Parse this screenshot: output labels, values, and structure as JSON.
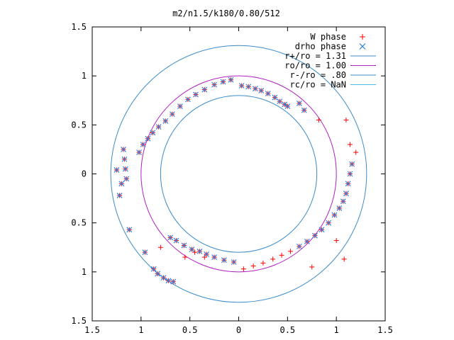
{
  "chart_data": {
    "type": "scatter",
    "title": "m2/n1.5/k180/0.80/512",
    "xlabel": "",
    "ylabel": "",
    "xlim": [
      -1.5,
      1.5
    ],
    "ylim": [
      -1.5,
      1.5
    ],
    "x_ticks": [
      -1.5,
      -1,
      -0.5,
      0,
      0.5,
      1,
      1.5
    ],
    "y_ticks": [
      -1.5,
      -1,
      -0.5,
      0,
      0.5,
      1,
      1.5
    ],
    "x_tick_labels": [
      "1.5",
      "1",
      "0.5",
      "0",
      "0.5",
      "1",
      "1.5"
    ],
    "y_tick_labels": [
      "1.5",
      "1",
      "0.5",
      "0",
      "0.5",
      "1",
      "1.5"
    ],
    "grid": false,
    "legend_position": "top-right",
    "series": [
      {
        "name": "W phase",
        "marker": "plus",
        "color": "#ff0000",
        "points": [
          [
            0.03,
            0.9
          ],
          [
            0.1,
            0.89
          ],
          [
            0.17,
            0.87
          ],
          [
            0.23,
            0.85
          ],
          [
            0.3,
            0.82
          ],
          [
            0.37,
            0.78
          ],
          [
            0.42,
            0.74
          ],
          [
            0.47,
            0.71
          ],
          [
            0.5,
            0.69
          ],
          [
            0.67,
            0.65
          ],
          [
            0.62,
            0.72
          ],
          [
            0.82,
            0.55
          ],
          [
            1.1,
            0.55
          ],
          [
            1.14,
            0.3
          ],
          [
            1.2,
            0.22
          ],
          [
            -0.08,
            0.96
          ],
          [
            -0.16,
            0.94
          ],
          [
            -0.25,
            0.91
          ],
          [
            -0.35,
            0.86
          ],
          [
            -0.44,
            0.81
          ],
          [
            -0.52,
            0.76
          ],
          [
            -0.6,
            0.69
          ],
          [
            -0.68,
            0.61
          ],
          [
            -0.75,
            0.54
          ],
          [
            -0.82,
            0.48
          ],
          [
            -0.88,
            0.42
          ],
          [
            -0.93,
            0.36
          ],
          [
            -0.98,
            0.3
          ],
          [
            -1.02,
            0.22
          ],
          [
            -1.18,
            0.25
          ],
          [
            -1.17,
            0.15
          ],
          [
            -1.16,
            0.05
          ],
          [
            -1.15,
            -0.05
          ],
          [
            -1.2,
            -0.1
          ],
          [
            -1.22,
            -0.22
          ],
          [
            -1.25,
            0.04
          ],
          [
            1.16,
            0.1
          ],
          [
            1.14,
            0.0
          ],
          [
            1.12,
            -0.1
          ],
          [
            1.1,
            -0.2
          ],
          [
            1.07,
            -0.28
          ],
          [
            1.03,
            -0.35
          ],
          [
            0.98,
            -0.42
          ],
          [
            0.92,
            -0.5
          ],
          [
            0.85,
            -0.57
          ],
          [
            0.78,
            -0.63
          ],
          [
            0.7,
            -0.69
          ],
          [
            0.62,
            -0.74
          ],
          [
            0.53,
            -0.79
          ],
          [
            0.44,
            -0.83
          ],
          [
            0.35,
            -0.87
          ],
          [
            0.25,
            -0.91
          ],
          [
            0.15,
            -0.94
          ],
          [
            0.05,
            -0.97
          ],
          [
            0.75,
            -0.95
          ],
          [
            1.08,
            -0.87
          ],
          [
            1.0,
            -0.68
          ],
          [
            -0.05,
            -0.9
          ],
          [
            -0.15,
            -0.88
          ],
          [
            -0.25,
            -0.85
          ],
          [
            -0.33,
            -0.82
          ],
          [
            -0.4,
            -0.79
          ],
          [
            -0.48,
            -0.77
          ],
          [
            -0.56,
            -0.73
          ],
          [
            -0.64,
            -0.68
          ],
          [
            -0.7,
            -0.65
          ],
          [
            -0.8,
            -0.75
          ],
          [
            -0.55,
            -0.85
          ],
          [
            -0.45,
            -0.8
          ],
          [
            -0.35,
            -0.85
          ],
          [
            -1.12,
            -0.57
          ],
          [
            -0.96,
            -0.8
          ],
          [
            -0.87,
            -0.97
          ],
          [
            -0.83,
            -1.02
          ],
          [
            -0.77,
            -1.06
          ],
          [
            -0.72,
            -1.09
          ],
          [
            -0.67,
            -1.1
          ]
        ]
      },
      {
        "name": "drho phase",
        "marker": "cross",
        "color": "#3080e0",
        "points": [
          [
            0.03,
            0.9
          ],
          [
            0.1,
            0.89
          ],
          [
            0.17,
            0.87
          ],
          [
            0.23,
            0.85
          ],
          [
            0.3,
            0.82
          ],
          [
            0.37,
            0.78
          ],
          [
            0.42,
            0.74
          ],
          [
            0.47,
            0.71
          ],
          [
            0.5,
            0.69
          ],
          [
            0.67,
            0.65
          ],
          [
            0.62,
            0.72
          ],
          [
            -0.08,
            0.96
          ],
          [
            -0.16,
            0.94
          ],
          [
            -0.25,
            0.91
          ],
          [
            -0.35,
            0.86
          ],
          [
            -0.44,
            0.81
          ],
          [
            -0.52,
            0.76
          ],
          [
            -0.6,
            0.69
          ],
          [
            -0.68,
            0.61
          ],
          [
            -0.75,
            0.54
          ],
          [
            -0.82,
            0.48
          ],
          [
            -0.88,
            0.42
          ],
          [
            -0.93,
            0.36
          ],
          [
            -0.98,
            0.3
          ],
          [
            -1.02,
            0.22
          ],
          [
            -1.18,
            0.25
          ],
          [
            -1.17,
            0.15
          ],
          [
            -1.16,
            0.05
          ],
          [
            -1.15,
            -0.05
          ],
          [
            -1.2,
            -0.1
          ],
          [
            -1.22,
            -0.22
          ],
          [
            -1.25,
            0.04
          ],
          [
            1.16,
            0.1
          ],
          [
            1.14,
            0.0
          ],
          [
            1.12,
            -0.1
          ],
          [
            1.1,
            -0.2
          ],
          [
            1.07,
            -0.28
          ],
          [
            1.03,
            -0.35
          ],
          [
            0.98,
            -0.42
          ],
          [
            0.92,
            -0.5
          ],
          [
            0.85,
            -0.57
          ],
          [
            0.78,
            -0.63
          ],
          [
            0.7,
            -0.69
          ],
          [
            0.62,
            -0.74
          ],
          [
            -0.05,
            -0.9
          ],
          [
            -0.15,
            -0.88
          ],
          [
            -0.25,
            -0.85
          ],
          [
            -0.33,
            -0.82
          ],
          [
            -0.4,
            -0.79
          ],
          [
            -0.48,
            -0.77
          ],
          [
            -0.56,
            -0.73
          ],
          [
            -0.64,
            -0.68
          ],
          [
            -0.7,
            -0.65
          ],
          [
            -1.12,
            -0.57
          ],
          [
            -0.96,
            -0.8
          ],
          [
            -0.87,
            -0.97
          ],
          [
            -0.83,
            -1.02
          ],
          [
            -0.77,
            -1.06
          ],
          [
            -0.72,
            -1.09
          ],
          [
            -0.67,
            -1.1
          ]
        ]
      },
      {
        "name": "r+/ro = 1.31",
        "kind": "circle",
        "r": 1.31,
        "color": "#3c8cc8"
      },
      {
        "name": "ro/ro = 1.00",
        "kind": "circle",
        "r": 1.0,
        "color": "#b020c0"
      },
      {
        "name": "r-/ro = .80",
        "kind": "circle",
        "r": 0.8,
        "color": "#3c8cc8"
      },
      {
        "name": "rc/ro = NaN",
        "kind": "circle",
        "r": null,
        "color": "#40c0e0"
      }
    ]
  }
}
